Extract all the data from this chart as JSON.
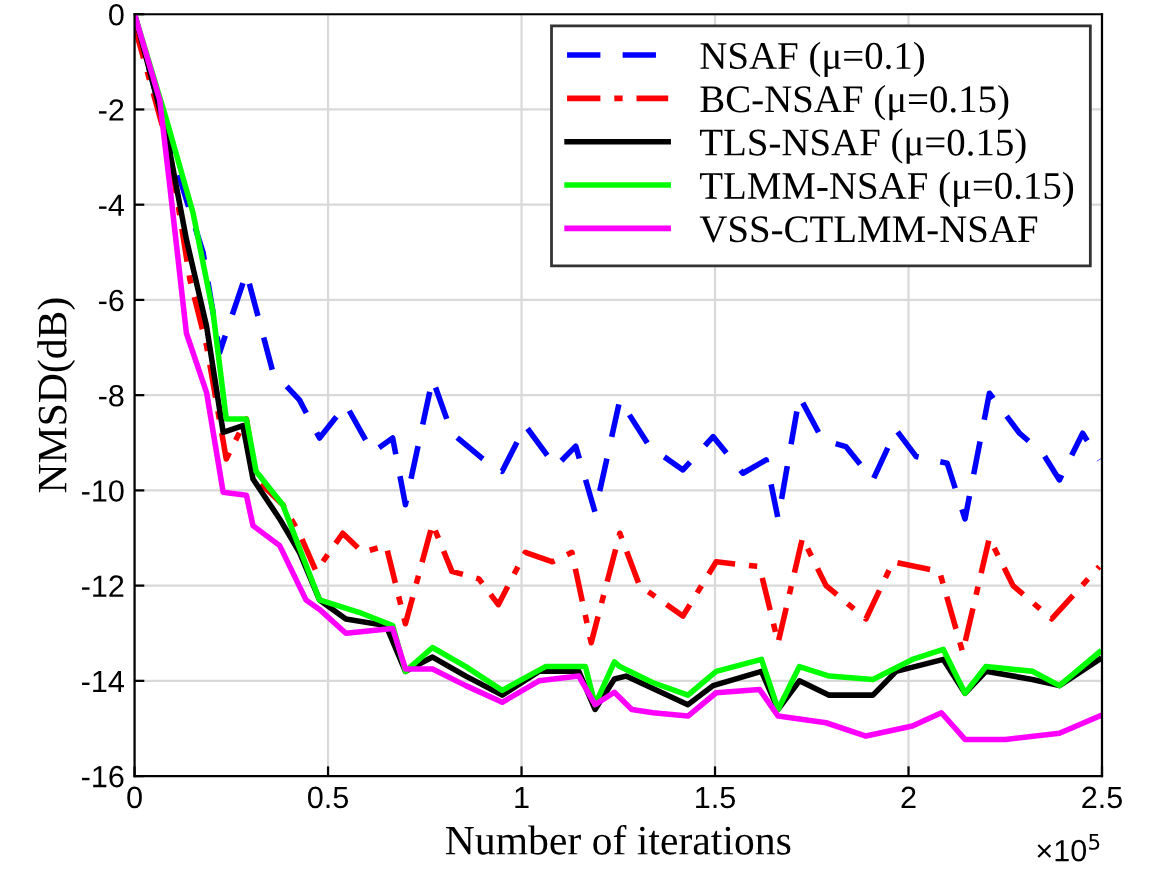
{
  "chart_data": {
    "type": "line",
    "xlabel": "Number of iterations",
    "ylabel": "NMSD(dB)",
    "xlim": [
      0,
      2.5
    ],
    "ylim": [
      -16,
      0
    ],
    "xticks": [
      0,
      0.5,
      1,
      1.5,
      2,
      2.5
    ],
    "yticks": [
      -16,
      -14,
      -12,
      -10,
      -8,
      -6,
      -4,
      -2,
      0
    ],
    "grid": true,
    "legend": "top right",
    "annotations": [
      "×10$^{5}$"
    ],
    "series": [
      {
        "name": "NSAF (μ=0.1)",
        "color": "#0000ff",
        "line_style": "dashed",
        "x": [
          0,
          0.091,
          0.134,
          0.177,
          0.22,
          0.289,
          0.357,
          0.426,
          0.478,
          0.546,
          0.615,
          0.667,
          0.7,
          0.77,
          0.82,
          0.9,
          0.95,
          1.01,
          1.088,
          1.14,
          1.19,
          1.254,
          1.331,
          1.417,
          1.495,
          1.572,
          1.632,
          1.663,
          1.718,
          1.778,
          1.838,
          1.908,
          1.968,
          2.02,
          2.1,
          2.146,
          2.209,
          2.287,
          2.347,
          2.39,
          2.45,
          2.493
        ],
        "values": [
          0,
          -2.77,
          -3.9,
          -5.0,
          -7.1,
          -5.43,
          -7.5,
          -8.1,
          -8.9,
          -8.2,
          -9.2,
          -8.9,
          -10.3,
          -7.66,
          -8.8,
          -9.34,
          -9.6,
          -8.64,
          -9.5,
          -9.07,
          -10.46,
          -8.1,
          -9.08,
          -9.57,
          -8.87,
          -9.64,
          -9.36,
          -10.6,
          -8.03,
          -8.94,
          -9.08,
          -9.78,
          -8.73,
          -9.29,
          -9.43,
          -10.6,
          -7.96,
          -8.8,
          -9.22,
          -9.78,
          -8.8,
          -9.36
        ]
      },
      {
        "name": "BC-NSAF (μ=0.15)",
        "color": "#ff0000",
        "line_style": "dashdot",
        "x": [
          0,
          0.091,
          0.143,
          0.186,
          0.237,
          0.289,
          0.314,
          0.383,
          0.426,
          0.469,
          0.538,
          0.589,
          0.65,
          0.7,
          0.77,
          0.82,
          0.89,
          0.94,
          1.01,
          1.08,
          1.13,
          1.18,
          1.254,
          1.305,
          1.417,
          1.503,
          1.615,
          1.663,
          1.726,
          1.787,
          1.89,
          1.96,
          2.08,
          2.14,
          2.209,
          2.27,
          2.37,
          2.493
        ],
        "values": [
          -0.25,
          -2.9,
          -5.57,
          -6.96,
          -9.34,
          -8.5,
          -9.76,
          -10.3,
          -10.9,
          -11.7,
          -10.9,
          -11.3,
          -11.16,
          -12.8,
          -10.7,
          -11.7,
          -11.86,
          -12.4,
          -11.3,
          -11.5,
          -11.3,
          -13.2,
          -10.9,
          -12.0,
          -12.64,
          -11.5,
          -11.6,
          -13.2,
          -11.0,
          -12.0,
          -12.7,
          -11.5,
          -11.7,
          -13.4,
          -11.0,
          -12.0,
          -12.7,
          -11.6
        ]
      },
      {
        "name": "TLS-NSAF (μ=0.15)",
        "color": "#000000",
        "line_style": "solid",
        "x": [
          0,
          0.082,
          0.134,
          0.186,
          0.229,
          0.28,
          0.306,
          0.375,
          0.426,
          0.478,
          0.546,
          0.65,
          0.7,
          0.77,
          0.856,
          0.95,
          1.045,
          1.148,
          1.19,
          1.24,
          1.27,
          1.43,
          1.495,
          1.62,
          1.663,
          1.718,
          1.795,
          1.908,
          1.968,
          2.09,
          2.146,
          2.2,
          2.32,
          2.39,
          2.493
        ],
        "values": [
          0,
          -2.5,
          -4.73,
          -6.55,
          -8.78,
          -8.64,
          -9.76,
          -10.6,
          -11.3,
          -12.3,
          -12.7,
          -12.84,
          -13.8,
          -13.5,
          -13.9,
          -14.3,
          -13.8,
          -13.8,
          -14.6,
          -13.96,
          -13.9,
          -14.5,
          -14.1,
          -13.8,
          -14.6,
          -14.0,
          -14.3,
          -14.3,
          -13.8,
          -13.55,
          -14.26,
          -13.8,
          -13.97,
          -14.1,
          -13.55
        ]
      },
      {
        "name": "TLMM-NSAF (μ=0.15)",
        "color": "#00ff00",
        "line_style": "solid",
        "x": [
          0,
          0.082,
          0.151,
          0.203,
          0.237,
          0.289,
          0.314,
          0.383,
          0.478,
          0.58,
          0.667,
          0.7,
          0.77,
          0.856,
          0.95,
          1.062,
          1.165,
          1.19,
          1.24,
          1.254,
          1.34,
          1.43,
          1.503,
          1.62,
          1.663,
          1.718,
          1.795,
          1.908,
          2.01,
          2.09,
          2.146,
          2.2,
          2.32,
          2.39,
          2.493
        ],
        "values": [
          0,
          -2.2,
          -4.17,
          -6.27,
          -8.5,
          -8.5,
          -9.6,
          -10.3,
          -12.3,
          -12.56,
          -12.84,
          -13.8,
          -13.3,
          -13.7,
          -14.2,
          -13.7,
          -13.7,
          -14.5,
          -13.6,
          -13.7,
          -14.04,
          -14.3,
          -13.8,
          -13.55,
          -14.6,
          -13.7,
          -13.9,
          -13.97,
          -13.55,
          -13.34,
          -14.26,
          -13.7,
          -13.8,
          -14.1,
          -13.4
        ]
      },
      {
        "name": "VSS-CTLMM-NSAF",
        "color": "#ff00ff",
        "line_style": "solid",
        "x": [
          0,
          0.065,
          0.091,
          0.134,
          0.186,
          0.229,
          0.289,
          0.306,
          0.375,
          0.443,
          0.478,
          0.546,
          0.667,
          0.7,
          0.77,
          0.856,
          0.95,
          1.045,
          1.148,
          1.19,
          1.24,
          1.285,
          1.34,
          1.43,
          1.503,
          1.615,
          1.663,
          1.787,
          1.89,
          2.01,
          2.085,
          2.146,
          2.25,
          2.39,
          2.493
        ],
        "values": [
          0,
          -1.8,
          -3.6,
          -6.7,
          -7.94,
          -10.04,
          -10.1,
          -10.74,
          -11.16,
          -12.3,
          -12.5,
          -13.0,
          -12.9,
          -13.75,
          -13.75,
          -14.1,
          -14.45,
          -14.0,
          -13.9,
          -14.5,
          -14.24,
          -14.6,
          -14.67,
          -14.74,
          -14.25,
          -14.18,
          -14.74,
          -14.88,
          -15.16,
          -14.95,
          -14.67,
          -15.23,
          -15.23,
          -15.1,
          -14.74
        ]
      }
    ]
  }
}
